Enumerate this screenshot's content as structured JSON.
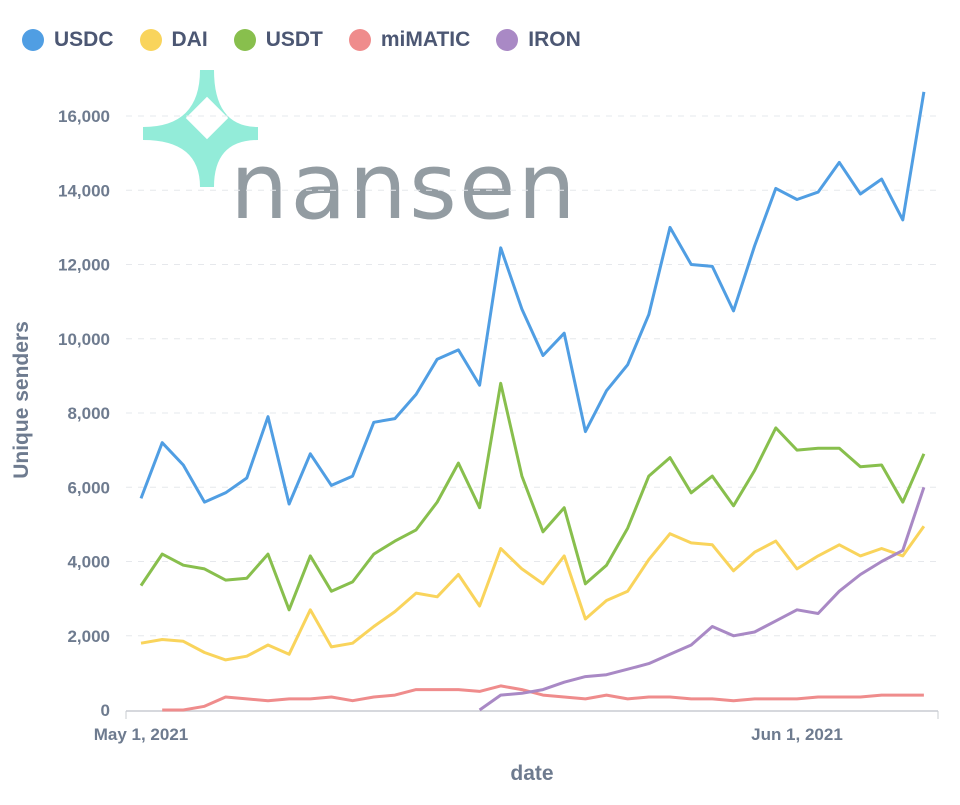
{
  "chart_data": {
    "type": "line",
    "title": "",
    "xlabel": "date",
    "ylabel": "Unique senders",
    "ylim": [
      0,
      16500
    ],
    "yticks": [
      "0",
      "2,000",
      "4,000",
      "6,000",
      "8,000",
      "10,000",
      "12,000",
      "14,000",
      "16,000"
    ],
    "ytick_values": [
      0,
      2000,
      4000,
      6000,
      8000,
      10000,
      12000,
      14000,
      16000
    ],
    "xticks": [
      {
        "label": "May 1, 2021",
        "date": "2021-05-01"
      },
      {
        "label": "Jun 1, 2021",
        "date": "2021-06-01"
      }
    ],
    "x_start": "2021-05-01",
    "x_end": "2021-06-07",
    "grid": "horizontal dashed",
    "legend_placement": "top-left",
    "watermark": "nansen",
    "series": [
      {
        "name": "USDC",
        "color": "#509EE3",
        "start": "2021-05-01",
        "values": [
          5700,
          7200,
          6600,
          5600,
          5850,
          6250,
          7900,
          5550,
          6900,
          6050,
          6300,
          7750,
          7850,
          8500,
          9450,
          9700,
          8750,
          12450,
          10800,
          9550,
          10150,
          7500,
          8600,
          9300,
          10650,
          13000,
          12000,
          11950,
          10750,
          12500,
          14050,
          13750,
          13950,
          14750,
          13900,
          14300,
          13200,
          16650
        ]
      },
      {
        "name": "DAI",
        "color": "#F9D45C",
        "start": "2021-05-01",
        "values": [
          1800,
          1900,
          1850,
          1550,
          1350,
          1450,
          1750,
          1500,
          2700,
          1700,
          1800,
          2250,
          2650,
          3150,
          3050,
          3650,
          2800,
          4350,
          3800,
          3400,
          4150,
          2450,
          2950,
          3200,
          4050,
          4750,
          4500,
          4450,
          3750,
          4250,
          4550,
          3800,
          4150,
          4450,
          4150,
          4350,
          4150,
          4950
        ]
      },
      {
        "name": "USDT",
        "color": "#88BF4D",
        "start": "2021-05-01",
        "values": [
          3350,
          4200,
          3900,
          3800,
          3500,
          3550,
          4200,
          2700,
          4150,
          3200,
          3450,
          4200,
          4550,
          4850,
          5600,
          6650,
          5450,
          8800,
          6300,
          4800,
          5450,
          3400,
          3900,
          4900,
          6300,
          6800,
          5850,
          6300,
          5500,
          6450,
          7600,
          7000,
          7050,
          7050,
          6550,
          6600,
          5600,
          6900
        ]
      },
      {
        "name": "miMATIC",
        "color": "#EF8C8C",
        "start": "2021-05-02",
        "values": [
          0,
          0,
          100,
          350,
          300,
          250,
          300,
          300,
          350,
          250,
          350,
          400,
          550,
          550,
          550,
          500,
          650,
          550,
          400,
          350,
          300,
          400,
          300,
          350,
          350,
          300,
          300,
          250,
          300,
          300,
          300,
          350,
          350,
          350,
          400,
          400,
          400
        ]
      },
      {
        "name": "IRON",
        "color": "#A989C5",
        "start": "2021-05-17",
        "values": [
          0,
          400,
          450,
          550,
          750,
          900,
          950,
          1100,
          1250,
          1500,
          1750,
          2250,
          2000,
          2100,
          2400,
          2700,
          2600,
          3200,
          3650,
          4000,
          4300,
          6000
        ]
      }
    ]
  }
}
